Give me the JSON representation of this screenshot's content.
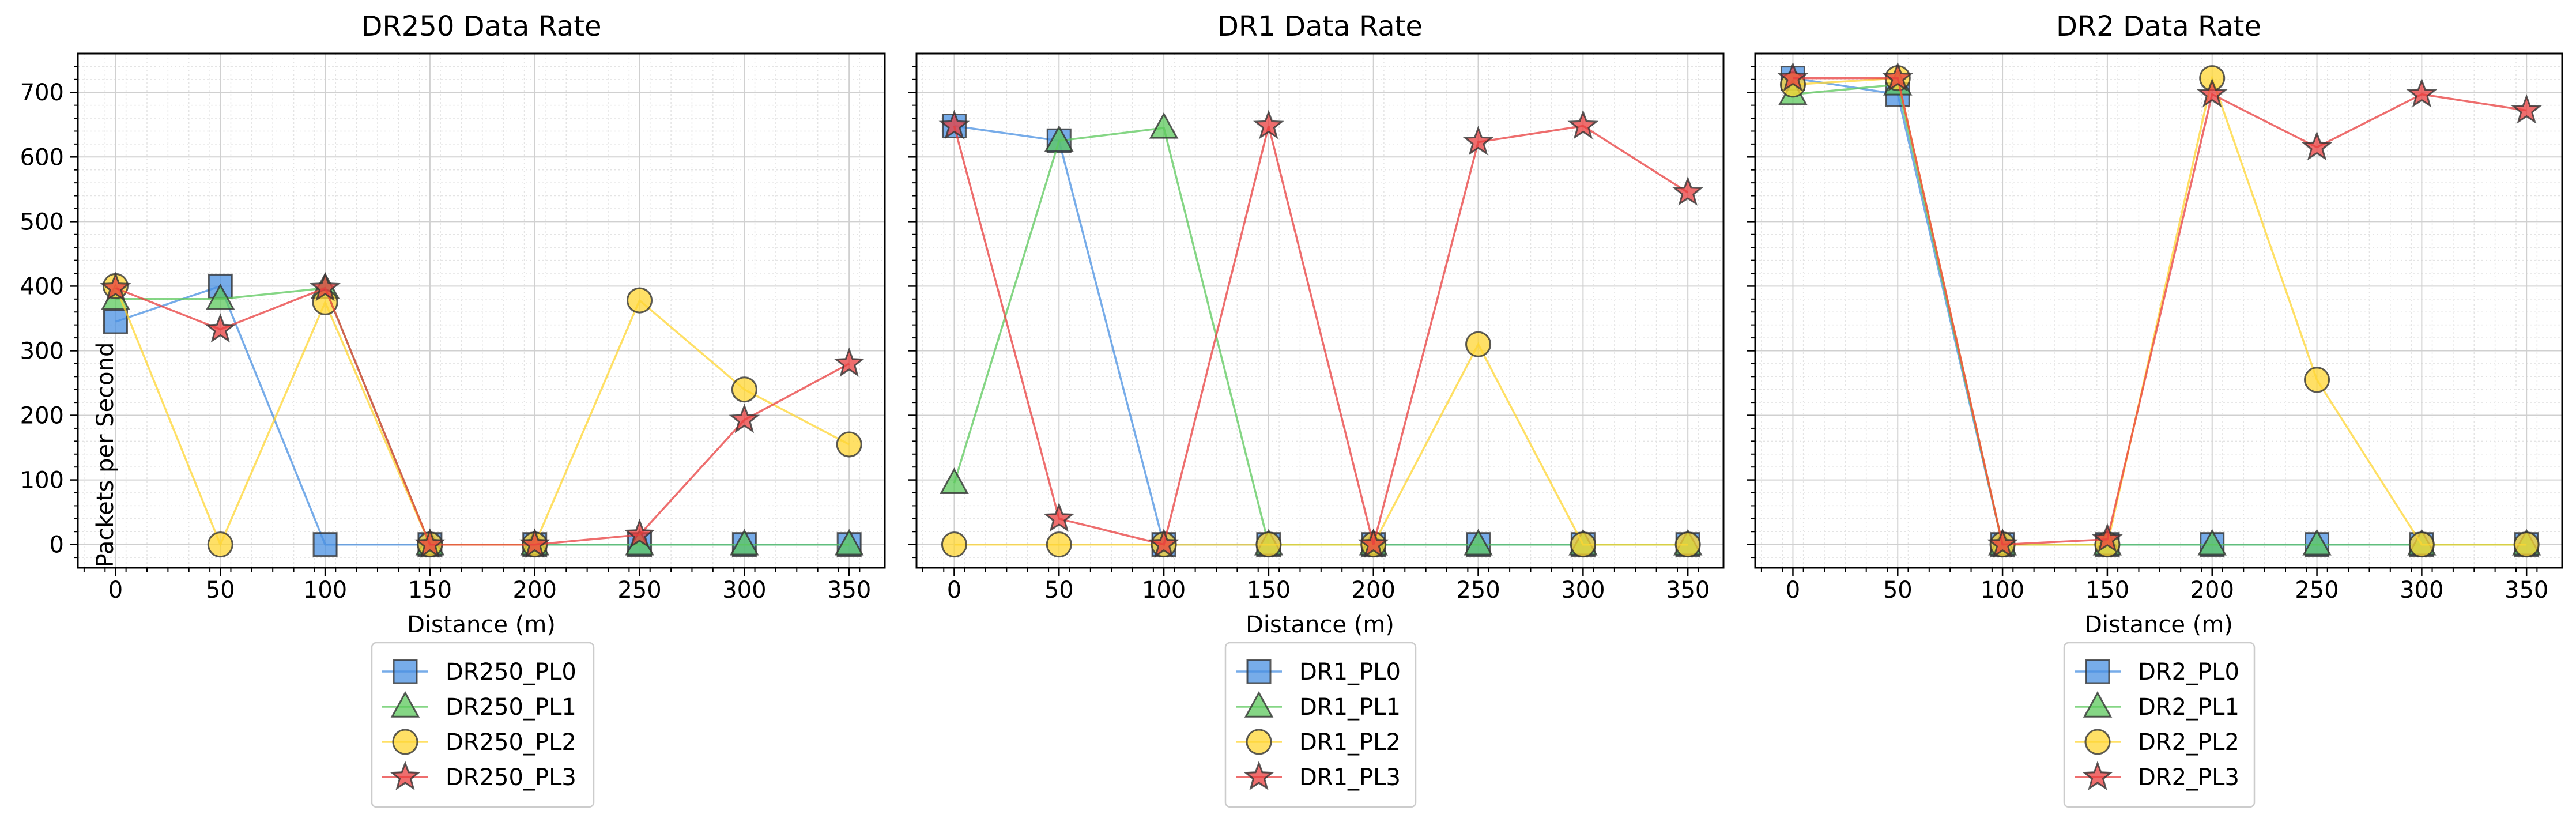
{
  "chart_data": [
    {
      "type": "line",
      "title": "DR250 Data Rate",
      "xlabel": "Distance (m)",
      "ylabel": "Packets per Second",
      "x": [
        0,
        50,
        100,
        150,
        200,
        250,
        300,
        350
      ],
      "xticks": [
        "0",
        "50",
        "100",
        "150",
        "200",
        "250",
        "300",
        "350"
      ],
      "yticks": [
        "0",
        "100",
        "200",
        "300",
        "400",
        "500",
        "600",
        "700"
      ],
      "xlim": [
        -18,
        367
      ],
      "ylim": [
        -36,
        760
      ],
      "grid": true,
      "legend_position": "below",
      "series": [
        {
          "name": "DR250_PL0",
          "marker": "square",
          "color": "#4a90e2",
          "values": [
            345,
            400,
            0,
            0,
            0,
            0,
            0,
            0
          ]
        },
        {
          "name": "DR250_PL1",
          "marker": "triangle",
          "color": "#5cc85c",
          "values": [
            380,
            380,
            397,
            0,
            0,
            0,
            0,
            0
          ]
        },
        {
          "name": "DR250_PL2",
          "marker": "circle",
          "color": "#ffd633",
          "values": [
            400,
            0,
            375,
            0,
            0,
            378,
            240,
            155
          ]
        },
        {
          "name": "DR250_PL3",
          "marker": "star",
          "color": "#e83e3e",
          "values": [
            397,
            333,
            397,
            0,
            0,
            15,
            193,
            280
          ]
        }
      ]
    },
    {
      "type": "line",
      "title": "DR1 Data Rate",
      "xlabel": "Distance (m)",
      "ylabel": "",
      "x": [
        0,
        50,
        100,
        150,
        200,
        250,
        300,
        350
      ],
      "xticks": [
        "0",
        "50",
        "100",
        "150",
        "200",
        "250",
        "300",
        "350"
      ],
      "yticks": [],
      "xlim": [
        -18,
        367
      ],
      "ylim": [
        -36,
        760
      ],
      "grid": true,
      "legend_position": "below",
      "series": [
        {
          "name": "DR1_PL0",
          "marker": "square",
          "color": "#4a90e2",
          "values": [
            648,
            625,
            0,
            0,
            0,
            0,
            0,
            0
          ]
        },
        {
          "name": "DR1_PL1",
          "marker": "triangle",
          "color": "#5cc85c",
          "values": [
            95,
            625,
            645,
            0,
            0,
            0,
            0,
            0
          ]
        },
        {
          "name": "DR1_PL2",
          "marker": "circle",
          "color": "#ffd633",
          "values": [
            0,
            0,
            0,
            0,
            0,
            310,
            0,
            0
          ]
        },
        {
          "name": "DR1_PL3",
          "marker": "star",
          "color": "#e83e3e",
          "values": [
            648,
            40,
            0,
            648,
            0,
            623,
            648,
            545
          ]
        }
      ]
    },
    {
      "type": "line",
      "title": "DR2 Data Rate",
      "xlabel": "Distance (m)",
      "ylabel": "",
      "x": [
        0,
        50,
        100,
        150,
        200,
        250,
        300,
        350
      ],
      "xticks": [
        "0",
        "50",
        "100",
        "150",
        "200",
        "250",
        "300",
        "350"
      ],
      "yticks": [],
      "xlim": [
        -18,
        367
      ],
      "ylim": [
        -36,
        760
      ],
      "grid": true,
      "legend_position": "below",
      "series": [
        {
          "name": "DR2_PL0",
          "marker": "square",
          "color": "#4a90e2",
          "values": [
            722,
            697,
            0,
            0,
            0,
            0,
            0,
            0
          ]
        },
        {
          "name": "DR2_PL1",
          "marker": "triangle",
          "color": "#5cc85c",
          "values": [
            697,
            712,
            0,
            0,
            0,
            0,
            0,
            0
          ]
        },
        {
          "name": "DR2_PL2",
          "marker": "circle",
          "color": "#ffd633",
          "values": [
            712,
            722,
            0,
            0,
            722,
            255,
            0,
            0
          ]
        },
        {
          "name": "DR2_PL3",
          "marker": "star",
          "color": "#e83e3e",
          "values": [
            722,
            722,
            0,
            8,
            697,
            615,
            697,
            672
          ]
        }
      ]
    }
  ]
}
